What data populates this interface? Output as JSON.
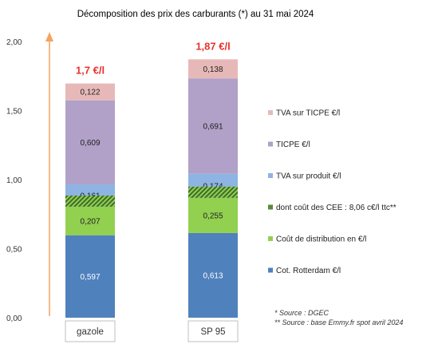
{
  "chart_data": {
    "type": "bar",
    "stacked": true,
    "title": "Décomposition des prix des carburants (*) au 31 mai 2024",
    "categories": [
      "gazole",
      "SP 95"
    ],
    "totals": [
      "1,7 €/l",
      "1,87 €/l"
    ],
    "ylim": [
      0,
      2.0
    ],
    "yticks": [
      "0,00",
      "0,50",
      "1,00",
      "1,50",
      "2,00"
    ],
    "series": [
      {
        "name": "Cot. Rotterdam €/l",
        "values": [
          0.597,
          0.613
        ],
        "labels": [
          "0,597",
          "0,613"
        ],
        "color": "#4f81bd",
        "pattern": false,
        "lightLabel": true
      },
      {
        "name": "Coût de distribution en €/l",
        "values": [
          0.207,
          0.255
        ],
        "labels": [
          "0,207",
          "0,255"
        ],
        "color": "#92d050",
        "pattern": false,
        "lightLabel": false
      },
      {
        "name": "dont coût des CEE : 8,06 c€/l ttc**",
        "values": [
          0.0806,
          0.0806
        ],
        "labels": [
          "",
          ""
        ],
        "color": "#70a34a",
        "pattern": true,
        "lightLabel": false,
        "overlay": true
      },
      {
        "name": "TVA sur produit €/l",
        "values": [
          0.161,
          0.174
        ],
        "labels": [
          "0,161",
          "0,174"
        ],
        "color": "#8db4e2",
        "pattern": false,
        "lightLabel": false
      },
      {
        "name": "TICPE €/l",
        "values": [
          0.609,
          0.691
        ],
        "labels": [
          "0,609",
          "0,691"
        ],
        "color": "#b1a0c7",
        "pattern": false,
        "lightLabel": false
      },
      {
        "name": "TVA sur TICPE €/l",
        "values": [
          0.122,
          0.138
        ],
        "labels": [
          "0,122",
          "0,138"
        ],
        "color": "#e6b9b8",
        "pattern": false,
        "lightLabel": false
      }
    ],
    "legend_order": [
      5,
      4,
      3,
      2,
      1,
      0
    ],
    "legend_position": "right",
    "notes": [
      "* Source : DGEC",
      "** Source : base Emmy.fr spot avril 2024"
    ],
    "arrow_color": "#f4a460"
  }
}
